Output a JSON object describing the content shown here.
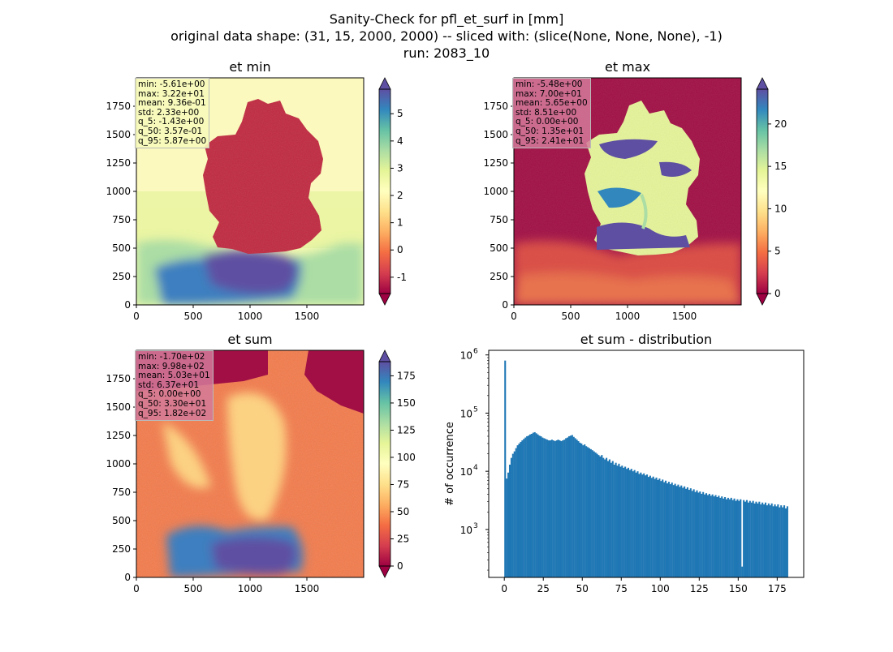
{
  "suptitle": [
    "Sanity-Check for pfl_et_surf in [mm]",
    "original data shape: (31, 15, 2000, 2000) -- sliced with: (slice(None, None, None), -1)",
    "run: 2083_10"
  ],
  "colormap": {
    "name": "Spectral",
    "stops": [
      "#9e0142",
      "#d53e4f",
      "#f46d43",
      "#fdae61",
      "#fee08b",
      "#ffffbf",
      "#e6f598",
      "#abdda4",
      "#66c2a5",
      "#3288bd",
      "#5e4fa2"
    ]
  },
  "maps": [
    {
      "id": "et-min",
      "title": "et min",
      "xticks": [
        "0",
        "500",
        "1000",
        "1500"
      ],
      "yticks": [
        "0",
        "250",
        "500",
        "750",
        "1000",
        "1250",
        "1500",
        "1750"
      ],
      "colorbar": {
        "min": -1.6,
        "max": 5.9,
        "ticks": [
          "-1",
          "0",
          "1",
          "2",
          "3",
          "4",
          "5"
        ],
        "tick_values": [
          -1,
          0,
          1,
          2,
          3,
          4,
          5
        ]
      },
      "stats": [
        "min: -5.61e+00",
        "max: 3.22e+01",
        "mean: 9.36e-01",
        "std: 2.33e+00",
        "q_5: -1.43e+00",
        "q_50: 3.57e-01",
        "q_95: 5.87e+00"
      ]
    },
    {
      "id": "et-max",
      "title": "et max",
      "xticks": [
        "0",
        "500",
        "1000",
        "1500"
      ],
      "yticks": [
        "0",
        "250",
        "500",
        "750",
        "1000",
        "1250",
        "1500",
        "1750"
      ],
      "colorbar": {
        "min": 0,
        "max": 24.1,
        "ticks": [
          "0",
          "5",
          "10",
          "15",
          "20"
        ],
        "tick_values": [
          0,
          5,
          10,
          15,
          20
        ]
      },
      "stats": [
        "min: -5.48e+00",
        "max: 7.00e+01",
        "mean: 5.65e+00",
        "std: 8.51e+00",
        "q_5: 0.00e+00",
        "q_50: 1.35e+01",
        "q_95: 2.41e+01"
      ]
    },
    {
      "id": "et-sum",
      "title": "et sum",
      "xticks": [
        "0",
        "500",
        "1000",
        "1500"
      ],
      "yticks": [
        "0",
        "250",
        "500",
        "750",
        "1000",
        "1250",
        "1500",
        "1750"
      ],
      "colorbar": {
        "min": 0,
        "max": 188,
        "ticks": [
          "0",
          "25",
          "50",
          "75",
          "100",
          "125",
          "150",
          "175"
        ],
        "tick_values": [
          0,
          25,
          50,
          75,
          100,
          125,
          150,
          175
        ]
      },
      "stats": [
        "min: -1.70e+02",
        "max: 9.98e+02",
        "mean: 5.03e+01",
        "std: 6.37e+01",
        "q_5: 0.00e+00",
        "q_50: 3.30e+01",
        "q_95: 1.82e+02"
      ]
    }
  ],
  "chart_data": {
    "type": "bar",
    "title": "et sum - distribution",
    "xlabel": "",
    "ylabel": "# of occurrence",
    "yscale": "log",
    "xlim": [
      -10,
      192
    ],
    "ylim": [
      150,
      1200000
    ],
    "xticks": [
      0,
      25,
      50,
      75,
      100,
      125,
      150,
      175
    ],
    "yticks": [
      {
        "value": 1000,
        "base": "10",
        "exp": "3"
      },
      {
        "value": 10000,
        "base": "10",
        "exp": "4"
      },
      {
        "value": 100000,
        "base": "10",
        "exp": "5"
      },
      {
        "value": 1000000,
        "base": "10",
        "exp": "6"
      }
    ],
    "bar_color": "#1f77b4",
    "bin_width": 1.0,
    "bins": [
      {
        "x": 0,
        "y": 800000
      },
      {
        "x": 1,
        "y": 7500
      },
      {
        "x": 2,
        "y": 9500
      },
      {
        "x": 3,
        "y": 13000
      },
      {
        "x": 4,
        "y": 17000
      },
      {
        "x": 5,
        "y": 20000
      },
      {
        "x": 6,
        "y": 22000
      },
      {
        "x": 7,
        "y": 25000
      },
      {
        "x": 8,
        "y": 28000
      },
      {
        "x": 9,
        "y": 30000
      },
      {
        "x": 10,
        "y": 32000
      },
      {
        "x": 11,
        "y": 34000
      },
      {
        "x": 12,
        "y": 36000
      },
      {
        "x": 13,
        "y": 38000
      },
      {
        "x": 14,
        "y": 40000
      },
      {
        "x": 15,
        "y": 41000
      },
      {
        "x": 16,
        "y": 43000
      },
      {
        "x": 17,
        "y": 44000
      },
      {
        "x": 18,
        "y": 46000
      },
      {
        "x": 19,
        "y": 47000
      },
      {
        "x": 20,
        "y": 45000
      },
      {
        "x": 21,
        "y": 43000
      },
      {
        "x": 22,
        "y": 41000
      },
      {
        "x": 23,
        "y": 40000
      },
      {
        "x": 24,
        "y": 38000
      },
      {
        "x": 25,
        "y": 37000
      },
      {
        "x": 26,
        "y": 36000
      },
      {
        "x": 27,
        "y": 35000
      },
      {
        "x": 28,
        "y": 34000
      },
      {
        "x": 29,
        "y": 34000
      },
      {
        "x": 30,
        "y": 35000
      },
      {
        "x": 31,
        "y": 34000
      },
      {
        "x": 32,
        "y": 33000
      },
      {
        "x": 33,
        "y": 34000
      },
      {
        "x": 34,
        "y": 35000
      },
      {
        "x": 35,
        "y": 34000
      },
      {
        "x": 36,
        "y": 33000
      },
      {
        "x": 37,
        "y": 34000
      },
      {
        "x": 38,
        "y": 35000
      },
      {
        "x": 39,
        "y": 37000
      },
      {
        "x": 40,
        "y": 38000
      },
      {
        "x": 41,
        "y": 40000
      },
      {
        "x": 42,
        "y": 41000
      },
      {
        "x": 43,
        "y": 42000
      },
      {
        "x": 44,
        "y": 39000
      },
      {
        "x": 45,
        "y": 37000
      },
      {
        "x": 46,
        "y": 35000
      },
      {
        "x": 47,
        "y": 33000
      },
      {
        "x": 48,
        "y": 31000
      },
      {
        "x": 49,
        "y": 30000
      },
      {
        "x": 50,
        "y": 28000
      },
      {
        "x": 51,
        "y": 29000
      },
      {
        "x": 52,
        "y": 27000
      },
      {
        "x": 53,
        "y": 26000
      },
      {
        "x": 54,
        "y": 25000
      },
      {
        "x": 55,
        "y": 24000
      },
      {
        "x": 56,
        "y": 23000
      },
      {
        "x": 57,
        "y": 22000
      },
      {
        "x": 58,
        "y": 21000
      },
      {
        "x": 59,
        "y": 20000
      },
      {
        "x": 60,
        "y": 19000
      },
      {
        "x": 61,
        "y": 18000
      },
      {
        "x": 62,
        "y": 19000
      },
      {
        "x": 63,
        "y": 17000
      },
      {
        "x": 64,
        "y": 16000
      },
      {
        "x": 65,
        "y": 17000
      },
      {
        "x": 66,
        "y": 15000
      },
      {
        "x": 67,
        "y": 16000
      },
      {
        "x": 68,
        "y": 14000
      },
      {
        "x": 69,
        "y": 15000
      },
      {
        "x": 70,
        "y": 13000
      },
      {
        "x": 71,
        "y": 14000
      },
      {
        "x": 72,
        "y": 12500
      },
      {
        "x": 73,
        "y": 13500
      },
      {
        "x": 74,
        "y": 12000
      },
      {
        "x": 75,
        "y": 12500
      },
      {
        "x": 76,
        "y": 11500
      },
      {
        "x": 77,
        "y": 12000
      },
      {
        "x": 78,
        "y": 11000
      },
      {
        "x": 79,
        "y": 11500
      },
      {
        "x": 80,
        "y": 10500
      },
      {
        "x": 81,
        "y": 11000
      },
      {
        "x": 82,
        "y": 10000
      },
      {
        "x": 83,
        "y": 10500
      },
      {
        "x": 84,
        "y": 9500
      },
      {
        "x": 85,
        "y": 10000
      },
      {
        "x": 86,
        "y": 9000
      },
      {
        "x": 87,
        "y": 9500
      },
      {
        "x": 88,
        "y": 8800
      },
      {
        "x": 89,
        "y": 9200
      },
      {
        "x": 90,
        "y": 8500
      },
      {
        "x": 91,
        "y": 8800
      },
      {
        "x": 92,
        "y": 8000
      },
      {
        "x": 93,
        "y": 8400
      },
      {
        "x": 94,
        "y": 7700
      },
      {
        "x": 95,
        "y": 8100
      },
      {
        "x": 96,
        "y": 7400
      },
      {
        "x": 97,
        "y": 7800
      },
      {
        "x": 98,
        "y": 7100
      },
      {
        "x": 99,
        "y": 7500
      },
      {
        "x": 100,
        "y": 6800
      },
      {
        "x": 101,
        "y": 7200
      },
      {
        "x": 102,
        "y": 6500
      },
      {
        "x": 103,
        "y": 6900
      },
      {
        "x": 104,
        "y": 6200
      },
      {
        "x": 105,
        "y": 6600
      },
      {
        "x": 106,
        "y": 6000
      },
      {
        "x": 107,
        "y": 6400
      },
      {
        "x": 108,
        "y": 5800
      },
      {
        "x": 109,
        "y": 6100
      },
      {
        "x": 110,
        "y": 5600
      },
      {
        "x": 111,
        "y": 5900
      },
      {
        "x": 112,
        "y": 5400
      },
      {
        "x": 113,
        "y": 5700
      },
      {
        "x": 114,
        "y": 5200
      },
      {
        "x": 115,
        "y": 5500
      },
      {
        "x": 116,
        "y": 5000
      },
      {
        "x": 117,
        "y": 5300
      },
      {
        "x": 118,
        "y": 4800
      },
      {
        "x": 119,
        "y": 5100
      },
      {
        "x": 120,
        "y": 4600
      },
      {
        "x": 121,
        "y": 4900
      },
      {
        "x": 122,
        "y": 4400
      },
      {
        "x": 123,
        "y": 4700
      },
      {
        "x": 124,
        "y": 4300
      },
      {
        "x": 125,
        "y": 4500
      },
      {
        "x": 126,
        "y": 4100
      },
      {
        "x": 127,
        "y": 4400
      },
      {
        "x": 128,
        "y": 4000
      },
      {
        "x": 129,
        "y": 4200
      },
      {
        "x": 130,
        "y": 3900
      },
      {
        "x": 131,
        "y": 4100
      },
      {
        "x": 132,
        "y": 3800
      },
      {
        "x": 133,
        "y": 4000
      },
      {
        "x": 134,
        "y": 3700
      },
      {
        "x": 135,
        "y": 3900
      },
      {
        "x": 136,
        "y": 3600
      },
      {
        "x": 137,
        "y": 3800
      },
      {
        "x": 138,
        "y": 3500
      },
      {
        "x": 139,
        "y": 3700
      },
      {
        "x": 140,
        "y": 3400
      },
      {
        "x": 141,
        "y": 3600
      },
      {
        "x": 142,
        "y": 3300
      },
      {
        "x": 143,
        "y": 3500
      },
      {
        "x": 144,
        "y": 3300
      },
      {
        "x": 145,
        "y": 3500
      },
      {
        "x": 146,
        "y": 3200
      },
      {
        "x": 147,
        "y": 3400
      },
      {
        "x": 148,
        "y": 3100
      },
      {
        "x": 149,
        "y": 3300
      },
      {
        "x": 150,
        "y": 3100
      },
      {
        "x": 151,
        "y": 3300
      },
      {
        "x": 152,
        "y": 230
      },
      {
        "x": 153,
        "y": 3200
      },
      {
        "x": 154,
        "y": 3000
      },
      {
        "x": 155,
        "y": 3200
      },
      {
        "x": 156,
        "y": 2900
      },
      {
        "x": 157,
        "y": 3100
      },
      {
        "x": 158,
        "y": 2900
      },
      {
        "x": 159,
        "y": 3100
      },
      {
        "x": 160,
        "y": 2800
      },
      {
        "x": 161,
        "y": 3000
      },
      {
        "x": 162,
        "y": 2800
      },
      {
        "x": 163,
        "y": 3000
      },
      {
        "x": 164,
        "y": 2700
      },
      {
        "x": 165,
        "y": 2900
      },
      {
        "x": 166,
        "y": 2700
      },
      {
        "x": 167,
        "y": 2900
      },
      {
        "x": 168,
        "y": 2600
      },
      {
        "x": 169,
        "y": 2800
      },
      {
        "x": 170,
        "y": 2600
      },
      {
        "x": 171,
        "y": 2800
      },
      {
        "x": 172,
        "y": 2500
      },
      {
        "x": 173,
        "y": 2700
      },
      {
        "x": 174,
        "y": 2500
      },
      {
        "x": 175,
        "y": 2700
      },
      {
        "x": 176,
        "y": 2400
      },
      {
        "x": 177,
        "y": 2600
      },
      {
        "x": 178,
        "y": 2400
      },
      {
        "x": 179,
        "y": 2600
      },
      {
        "x": 180,
        "y": 2300
      },
      {
        "x": 181,
        "y": 2500
      }
    ]
  }
}
